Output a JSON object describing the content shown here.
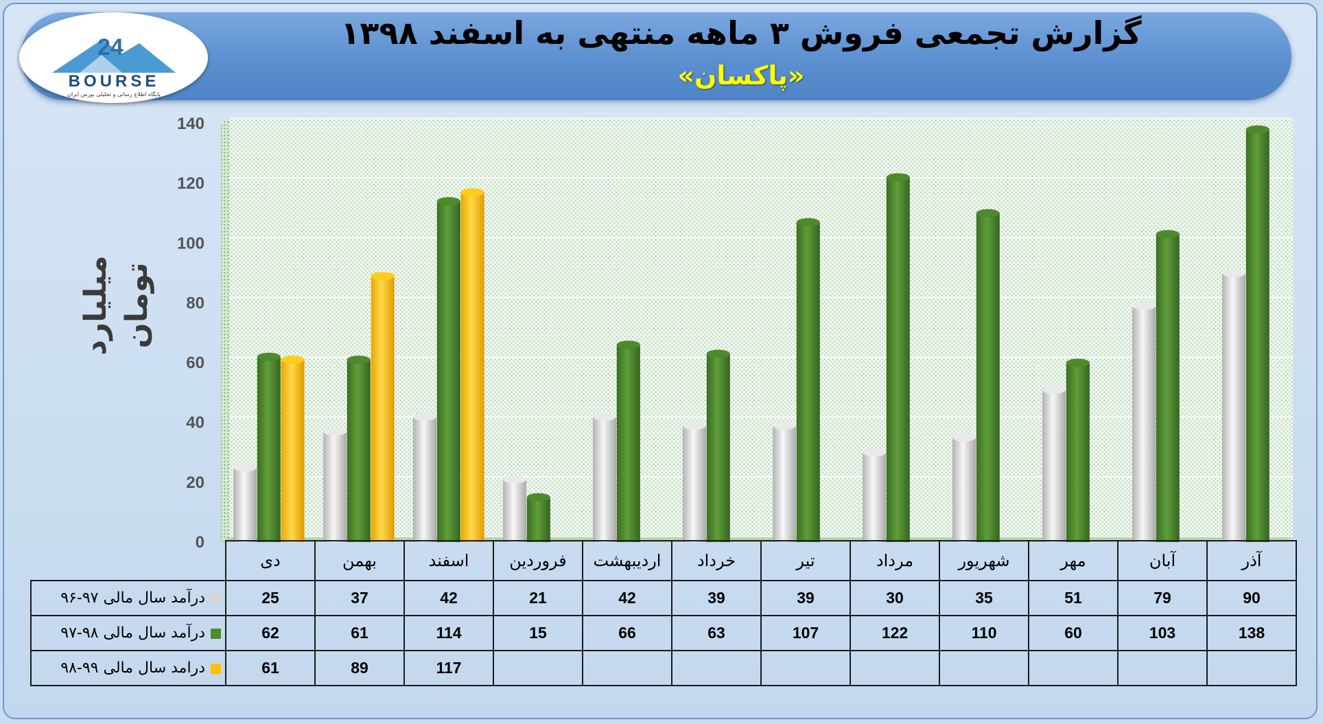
{
  "header": {
    "title": "گزارش تجمعی فروش ۳ ماهه منتهی به اسفند ۱۳۹۸",
    "subtitle": "«پاکسان»",
    "logo_text": "BOURSE",
    "logo_tagline": "پایگاه اطلاع رسانی و تحلیلی بورس ایران"
  },
  "colors": {
    "series_1": "#d4d4d4",
    "series_2": "#4e8a2e",
    "series_3": "#ffc000",
    "header": "#5b8fd0",
    "title_highlight": "#ffff00"
  },
  "chart_data": {
    "type": "bar",
    "title": "گزارش تجمعی فروش ۳ ماهه منتهی به اسفند ۱۳۹۸",
    "subtitle": "«پاکسان»",
    "ylabel": "میلیارد تومان",
    "ylim": [
      0,
      140
    ],
    "yticks": [
      0,
      20,
      40,
      60,
      80,
      100,
      120,
      140
    ],
    "grid": true,
    "categories": [
      "دی",
      "بهمن",
      "اسفند",
      "فروردین",
      "اردیبهشت",
      "خرداد",
      "تیر",
      "مرداد",
      "شهریور",
      "مهر",
      "آبان",
      "آذر"
    ],
    "series": [
      {
        "name": "درآمد سال مالی ۹۷-۹۶",
        "values": [
          25,
          37,
          42,
          21,
          42,
          39,
          39,
          30,
          35,
          51,
          79,
          90
        ]
      },
      {
        "name": "درآمد سال مالی ۹۸-۹۷",
        "values": [
          62,
          61,
          114,
          15,
          66,
          63,
          107,
          122,
          110,
          60,
          103,
          138
        ]
      },
      {
        "name": "درامد سال مالی ۹۹-۹۸",
        "values": [
          61,
          89,
          117,
          null,
          null,
          null,
          null,
          null,
          null,
          null,
          null,
          null
        ]
      }
    ]
  },
  "table": {
    "rows": [
      [
        "25",
        "37",
        "42",
        "21",
        "42",
        "39",
        "39",
        "30",
        "35",
        "51",
        "79",
        "90"
      ],
      [
        "62",
        "61",
        "114",
        "15",
        "66",
        "63",
        "107",
        "122",
        "110",
        "60",
        "103",
        "138"
      ],
      [
        "61",
        "89",
        "117",
        "",
        "",
        "",
        "",
        "",
        "",
        "",
        "",
        ""
      ]
    ]
  }
}
